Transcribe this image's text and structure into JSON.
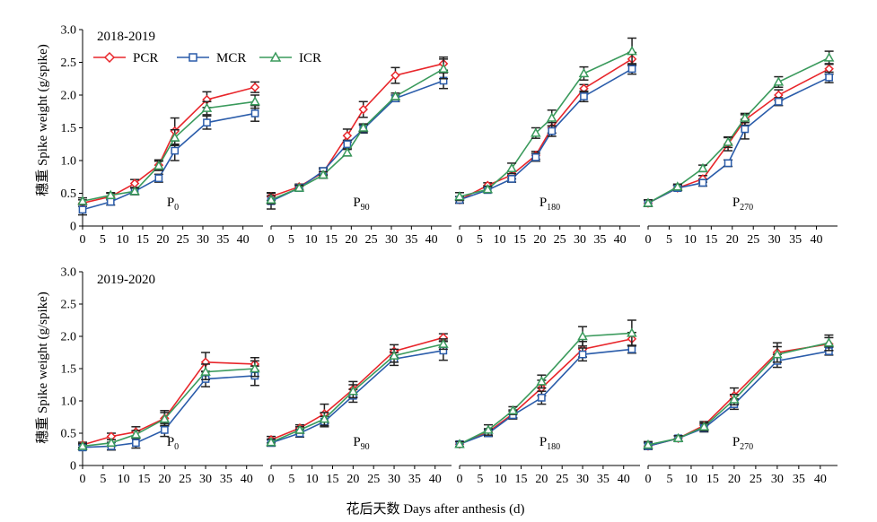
{
  "figure": {
    "y_label": "穗重 Spike weight (g/spike)",
    "x_label": "花后天数 Days after anthesis (d)",
    "rows": [
      {
        "label": "2018-2019"
      },
      {
        "label": "2019-2020"
      }
    ],
    "legend": [
      {
        "name": "PCR",
        "color": "#e8262b",
        "marker": "diamond"
      },
      {
        "name": "MCR",
        "color": "#2a5caa",
        "marker": "square"
      },
      {
        "name": "ICR",
        "color": "#3a9a5c",
        "marker": "triangle"
      }
    ],
    "y_ticks": [
      "0",
      "0.5",
      "1.0",
      "1.5",
      "2.0",
      "2.5",
      "3.0"
    ],
    "x_ticks": [
      "0",
      "5",
      "10",
      "15",
      "20",
      "25",
      "30",
      "35",
      "40"
    ]
  },
  "chart_data": [
    {
      "type": "line",
      "row_label": "2018-2019",
      "panel_label": {
        "base": "P",
        "sub": "0"
      },
      "xlim": [
        0,
        45
      ],
      "ylim": [
        0,
        3
      ],
      "series": [
        {
          "name": "PCR",
          "x": [
            0,
            7,
            13,
            19,
            23,
            31,
            43
          ],
          "y": [
            0.35,
            0.45,
            0.65,
            0.93,
            1.45,
            1.93,
            2.12
          ],
          "err": [
            0.05,
            0.05,
            0.06,
            0.08,
            0.2,
            0.12,
            0.08
          ]
        },
        {
          "name": "MCR",
          "x": [
            0,
            7,
            13,
            19,
            23,
            31,
            43
          ],
          "y": [
            0.25,
            0.37,
            0.53,
            0.73,
            1.15,
            1.58,
            1.72
          ],
          "err": [
            0.08,
            0.05,
            0.05,
            0.06,
            0.15,
            0.1,
            0.12
          ]
        },
        {
          "name": "ICR",
          "x": [
            0,
            7,
            13,
            19,
            23,
            31,
            43
          ],
          "y": [
            0.38,
            0.47,
            0.53,
            0.92,
            1.35,
            1.8,
            1.9
          ],
          "err": [
            0.05,
            0.04,
            0.05,
            0.07,
            0.12,
            0.1,
            0.1
          ]
        }
      ]
    },
    {
      "type": "line",
      "row_label": "2018-2019",
      "panel_label": {
        "base": "P",
        "sub": "90"
      },
      "xlim": [
        0,
        45
      ],
      "ylim": [
        0,
        3
      ],
      "series": [
        {
          "name": "PCR",
          "x": [
            0,
            7,
            13,
            19,
            23,
            31,
            43
          ],
          "y": [
            0.45,
            0.6,
            0.82,
            1.38,
            1.78,
            2.3,
            2.48
          ],
          "err": [
            0.06,
            0.04,
            0.05,
            0.1,
            0.12,
            0.12,
            0.1
          ]
        },
        {
          "name": "MCR",
          "x": [
            0,
            7,
            13,
            19,
            23,
            31,
            43
          ],
          "y": [
            0.38,
            0.58,
            0.84,
            1.25,
            1.48,
            1.95,
            2.22
          ],
          "err": [
            0.12,
            0.04,
            0.05,
            0.06,
            0.06,
            0.05,
            0.12
          ]
        },
        {
          "name": "ICR",
          "x": [
            0,
            7,
            13,
            19,
            23,
            31,
            43
          ],
          "y": [
            0.4,
            0.58,
            0.78,
            1.12,
            1.5,
            1.98,
            2.4
          ],
          "err": [
            0.06,
            0.04,
            0.05,
            0.05,
            0.06,
            0.05,
            0.15
          ]
        }
      ]
    },
    {
      "type": "line",
      "row_label": "2018-2019",
      "panel_label": {
        "base": "P",
        "sub": "180"
      },
      "xlim": [
        0,
        45
      ],
      "ylim": [
        0,
        3
      ],
      "series": [
        {
          "name": "PCR",
          "x": [
            0,
            7,
            13,
            19,
            23,
            31,
            43
          ],
          "y": [
            0.4,
            0.62,
            0.78,
            1.08,
            1.5,
            2.1,
            2.55
          ],
          "err": [
            0.05,
            0.04,
            0.06,
            0.06,
            0.08,
            0.06,
            0.1
          ]
        },
        {
          "name": "MCR",
          "x": [
            0,
            7,
            13,
            19,
            23,
            31,
            43
          ],
          "y": [
            0.4,
            0.55,
            0.72,
            1.05,
            1.45,
            1.98,
            2.4
          ],
          "err": [
            0.05,
            0.04,
            0.05,
            0.06,
            0.08,
            0.08,
            0.08
          ]
        },
        {
          "name": "ICR",
          "x": [
            0,
            7,
            13,
            19,
            23,
            31,
            43
          ],
          "y": [
            0.45,
            0.56,
            0.88,
            1.42,
            1.65,
            2.33,
            2.67
          ],
          "err": [
            0.06,
            0.05,
            0.08,
            0.08,
            0.12,
            0.1,
            0.2
          ]
        }
      ]
    },
    {
      "type": "line",
      "row_label": "2018-2019",
      "panel_label": {
        "base": "P",
        "sub": "270"
      },
      "xlim": [
        0,
        45
      ],
      "ylim": [
        0,
        3
      ],
      "series": [
        {
          "name": "PCR",
          "x": [
            0,
            7,
            13,
            19,
            23,
            31,
            43
          ],
          "y": [
            0.35,
            0.58,
            0.72,
            1.25,
            1.62,
            2.0,
            2.4
          ],
          "err": [
            0.05,
            0.04,
            0.05,
            0.1,
            0.08,
            0.08,
            0.08
          ]
        },
        {
          "name": "MCR",
          "x": [
            0,
            7,
            13,
            19,
            23,
            31,
            43
          ],
          "y": [
            0.35,
            0.58,
            0.66,
            0.96,
            1.48,
            1.9,
            2.27
          ],
          "err": [
            0.04,
            0.04,
            0.05,
            0.05,
            0.15,
            0.06,
            0.08
          ]
        },
        {
          "name": "ICR",
          "x": [
            0,
            7,
            13,
            19,
            23,
            31,
            43
          ],
          "y": [
            0.35,
            0.6,
            0.88,
            1.28,
            1.65,
            2.2,
            2.57
          ],
          "err": [
            0.05,
            0.04,
            0.05,
            0.08,
            0.07,
            0.08,
            0.1
          ]
        }
      ]
    },
    {
      "type": "line",
      "row_label": "2019-2020",
      "panel_label": {
        "base": "P",
        "sub": "0"
      },
      "xlim": [
        0,
        44
      ],
      "ylim": [
        0,
        3
      ],
      "series": [
        {
          "name": "PCR",
          "x": [
            0,
            7,
            13,
            20,
            30,
            42
          ],
          "y": [
            0.32,
            0.45,
            0.52,
            0.73,
            1.6,
            1.57
          ],
          "err": [
            0.04,
            0.05,
            0.08,
            0.12,
            0.15,
            0.1
          ]
        },
        {
          "name": "MCR",
          "x": [
            0,
            7,
            13,
            20,
            30,
            42
          ],
          "y": [
            0.28,
            0.3,
            0.35,
            0.55,
            1.34,
            1.39
          ],
          "err": [
            0.04,
            0.06,
            0.08,
            0.1,
            0.12,
            0.15
          ]
        },
        {
          "name": "ICR",
          "x": [
            0,
            7,
            13,
            20,
            30,
            42
          ],
          "y": [
            0.3,
            0.35,
            0.48,
            0.72,
            1.45,
            1.5
          ],
          "err": [
            0.04,
            0.05,
            0.06,
            0.1,
            0.12,
            0.12
          ]
        }
      ]
    },
    {
      "type": "line",
      "row_label": "2019-2020",
      "panel_label": {
        "base": "P",
        "sub": "90"
      },
      "xlim": [
        0,
        44
      ],
      "ylim": [
        0,
        3
      ],
      "series": [
        {
          "name": "PCR",
          "x": [
            0,
            7,
            13,
            20,
            30,
            42
          ],
          "y": [
            0.4,
            0.58,
            0.8,
            1.18,
            1.77,
            1.98
          ],
          "err": [
            0.05,
            0.05,
            0.15,
            0.12,
            0.1,
            0.06
          ]
        },
        {
          "name": "MCR",
          "x": [
            0,
            7,
            13,
            20,
            30,
            42
          ],
          "y": [
            0.35,
            0.5,
            0.68,
            1.08,
            1.65,
            1.78
          ],
          "err": [
            0.05,
            0.06,
            0.08,
            0.1,
            0.1,
            0.15
          ]
        },
        {
          "name": "ICR",
          "x": [
            0,
            7,
            13,
            20,
            30,
            42
          ],
          "y": [
            0.36,
            0.55,
            0.72,
            1.15,
            1.7,
            1.88
          ],
          "err": [
            0.05,
            0.05,
            0.1,
            0.1,
            0.1,
            0.08
          ]
        }
      ]
    },
    {
      "type": "line",
      "row_label": "2019-2020",
      "panel_label": {
        "base": "P",
        "sub": "180"
      },
      "xlim": [
        0,
        44
      ],
      "ylim": [
        0,
        3
      ],
      "series": [
        {
          "name": "PCR",
          "x": [
            0,
            7,
            13,
            20,
            30,
            42
          ],
          "y": [
            0.33,
            0.52,
            0.8,
            1.2,
            1.8,
            1.96
          ],
          "err": [
            0.04,
            0.05,
            0.06,
            0.12,
            0.12,
            0.1
          ]
        },
        {
          "name": "MCR",
          "x": [
            0,
            7,
            13,
            20,
            30,
            42
          ],
          "y": [
            0.33,
            0.5,
            0.78,
            1.05,
            1.72,
            1.8
          ],
          "err": [
            0.04,
            0.05,
            0.06,
            0.1,
            0.1,
            0.06
          ]
        },
        {
          "name": "ICR",
          "x": [
            0,
            7,
            13,
            20,
            30,
            42
          ],
          "y": [
            0.33,
            0.55,
            0.85,
            1.3,
            2.0,
            2.05
          ],
          "err": [
            0.04,
            0.08,
            0.06,
            0.1,
            0.15,
            0.2
          ]
        }
      ]
    },
    {
      "type": "line",
      "row_label": "2019-2020",
      "panel_label": {
        "base": "P",
        "sub": "270"
      },
      "xlim": [
        0,
        44
      ],
      "ylim": [
        0,
        3
      ],
      "series": [
        {
          "name": "PCR",
          "x": [
            0,
            7,
            13,
            20,
            30,
            42
          ],
          "y": [
            0.3,
            0.42,
            0.62,
            1.08,
            1.75,
            1.88
          ],
          "err": [
            0.05,
            0.04,
            0.06,
            0.12,
            0.15,
            0.1
          ]
        },
        {
          "name": "MCR",
          "x": [
            0,
            7,
            13,
            20,
            30,
            42
          ],
          "y": [
            0.3,
            0.42,
            0.58,
            0.95,
            1.62,
            1.77
          ],
          "err": [
            0.05,
            0.04,
            0.06,
            0.08,
            0.1,
            0.06
          ]
        },
        {
          "name": "ICR",
          "x": [
            0,
            7,
            13,
            20,
            30,
            42
          ],
          "y": [
            0.32,
            0.42,
            0.6,
            1.02,
            1.72,
            1.9
          ],
          "err": [
            0.05,
            0.04,
            0.06,
            0.08,
            0.12,
            0.12
          ]
        }
      ]
    }
  ]
}
